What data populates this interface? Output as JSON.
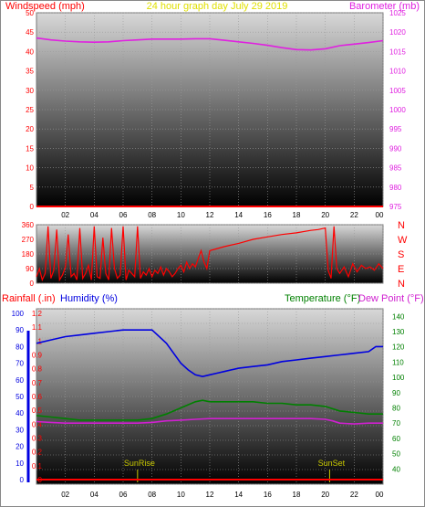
{
  "colors": {
    "wind": "#ff0000",
    "baro": "#e020e0",
    "winddir": "#ff0000",
    "rain": "#ff0000",
    "humidity": "#0000e0",
    "temperature": "#008000",
    "dewpoint": "#d020d0",
    "sun": "#c8c800",
    "title": "#e0e000"
  },
  "header": {
    "left_label": "Windspeed (mph)",
    "title": "24 hour graph day   July 29 2019",
    "right_label": "Barometer (mb)"
  },
  "chart_data": [
    {
      "id": "wind-baro",
      "type": "line",
      "x_ticks": [
        "02",
        "04",
        "06",
        "08",
        "10",
        "12",
        "14",
        "16",
        "18",
        "20",
        "22",
        "00"
      ],
      "left_axis": {
        "label": "Windspeed (mph)",
        "range": [
          0,
          50
        ],
        "ticks": [
          "0",
          "5",
          "10",
          "15",
          "20",
          "25",
          "30",
          "35",
          "40",
          "45",
          "50"
        ]
      },
      "right_axis": {
        "label": "Barometer (mb)",
        "range": [
          975,
          1025
        ],
        "ticks": [
          "975",
          "980",
          "985",
          "990",
          "995",
          "1000",
          "1005",
          "1010",
          "1015",
          "1020",
          "1025"
        ]
      },
      "series": [
        {
          "axis": "right",
          "x": [
            0,
            1,
            2,
            3,
            4,
            5,
            6,
            7,
            8,
            9,
            10,
            11,
            12,
            13,
            14,
            15,
            16,
            17,
            18,
            19,
            20,
            21,
            22,
            23,
            24
          ],
          "values": [
            1018.5,
            1018.0,
            1017.7,
            1017.5,
            1017.4,
            1017.5,
            1017.8,
            1018.0,
            1018.2,
            1018.2,
            1018.2,
            1018.3,
            1018.3,
            1017.9,
            1017.5,
            1017.1,
            1016.6,
            1016.0,
            1015.5,
            1015.4,
            1015.7,
            1016.5,
            1016.9,
            1017.3,
            1017.8
          ]
        },
        {
          "axis": "left",
          "x": [
            0,
            24
          ],
          "values": [
            0,
            0
          ]
        }
      ]
    },
    {
      "id": "winddir",
      "type": "line",
      "x_ticks": [
        "02",
        "04",
        "06",
        "08",
        "10",
        "12",
        "14",
        "16",
        "18",
        "20",
        "22",
        "00"
      ],
      "left_axis": {
        "range": [
          0,
          360
        ],
        "ticks": [
          "0",
          "90",
          "180",
          "270",
          "360"
        ]
      },
      "right_axis": {
        "ticks": [
          "N",
          "E",
          "S",
          "W",
          "N"
        ]
      },
      "series": [
        {
          "x": [
            0,
            0.2,
            0.4,
            0.6,
            0.8,
            1.0,
            1.2,
            1.4,
            1.6,
            1.8,
            2.0,
            2.2,
            2.4,
            2.6,
            2.8,
            3.0,
            3.2,
            3.4,
            3.6,
            3.8,
            4.0,
            4.2,
            4.4,
            4.6,
            4.8,
            5.0,
            5.2,
            5.4,
            5.6,
            5.8,
            6.0,
            6.2,
            6.4,
            6.6,
            6.8,
            7.0,
            7.2,
            7.4,
            7.6,
            7.8,
            8.0,
            8.2,
            8.4,
            8.6,
            8.8,
            9.0,
            9.2,
            9.4,
            9.6,
            9.8,
            10.0,
            10.2,
            10.4,
            10.6,
            10.8,
            11.0,
            11.2,
            11.4,
            11.6,
            11.8,
            12.0,
            13.0,
            14.0,
            15.0,
            16.0,
            17.0,
            18.0,
            19.0,
            19.5,
            20.0,
            20.2,
            20.4,
            20.6,
            20.8,
            21.0,
            21.3,
            21.6,
            21.9,
            22.2,
            22.5,
            22.8,
            23.1,
            23.4,
            23.7,
            24.0
          ],
          "values": [
            40,
            90,
            20,
            60,
            350,
            30,
            80,
            330,
            20,
            50,
            100,
            300,
            40,
            60,
            20,
            340,
            30,
            60,
            110,
            20,
            350,
            40,
            30,
            280,
            60,
            20,
            340,
            90,
            30,
            50,
            350,
            20,
            80,
            60,
            40,
            350,
            30,
            70,
            50,
            90,
            40,
            80,
            60,
            100,
            50,
            90,
            70,
            40,
            60,
            90,
            110,
            70,
            130,
            90,
            120,
            100,
            150,
            200,
            130,
            90,
            200,
            225,
            245,
            270,
            285,
            300,
            310,
            325,
            330,
            340,
            80,
            30,
            350,
            90,
            60,
            100,
            40,
            120,
            70,
            110,
            90,
            100,
            80,
            120,
            90
          ]
        }
      ]
    },
    {
      "id": "rain-hum-temp",
      "type": "line",
      "header_left_rain": "Rainfall (.in)",
      "header_left_hum": "Humidity (%)",
      "header_right_temp": "Temperature (°F)",
      "header_right_dew": "Dew Point (°F)",
      "x_ticks": [
        "02",
        "04",
        "06",
        "08",
        "10",
        "12",
        "14",
        "16",
        "18",
        "20",
        "22",
        "00"
      ],
      "hum_axis": {
        "range": [
          0,
          100
        ],
        "ticks": [
          "0",
          "10",
          "20",
          "30",
          "40",
          "50",
          "60",
          "70",
          "80",
          "90",
          "100"
        ]
      },
      "rain_axis": {
        "range": [
          0,
          1.2
        ],
        "ticks": [
          "0",
          "0.1",
          "0.2",
          "0.3",
          "0.4",
          "0.5",
          "0.6",
          "0.7",
          "0.8",
          "0.9",
          "1",
          "1.1",
          "1.2"
        ]
      },
      "temp_axis": {
        "range": [
          30,
          145
        ],
        "ticks": [
          "40",
          "50",
          "60",
          "70",
          "80",
          "90",
          "100",
          "110",
          "120",
          "130",
          "140"
        ]
      },
      "annotations": [
        {
          "label": "SunRise",
          "x": 7.0
        },
        {
          "label": "SunSet",
          "x": 20.3
        }
      ],
      "series": [
        {
          "name": "Humidity",
          "x": [
            0,
            1,
            2,
            3,
            4,
            5,
            6,
            7,
            8,
            9,
            10,
            10.5,
            11,
            11.5,
            12,
            12.5,
            13,
            14,
            15,
            16,
            17,
            18,
            19,
            20,
            21,
            22,
            23,
            23.5,
            24
          ],
          "values": [
            82,
            84,
            86,
            87,
            88,
            89,
            90,
            90,
            90,
            82,
            70,
            66,
            63,
            62,
            63,
            64,
            65,
            67,
            68,
            69,
            71,
            72,
            73,
            74,
            75,
            76,
            77,
            80,
            80
          ]
        },
        {
          "name": "Temperature",
          "x": [
            0,
            1,
            2,
            3,
            4,
            5,
            6,
            7,
            8,
            9,
            10,
            11,
            11.5,
            12,
            13,
            14,
            15,
            16,
            17,
            18,
            19,
            20,
            21,
            22,
            23,
            24
          ],
          "values": [
            75,
            74,
            73,
            72,
            72,
            72,
            72,
            72,
            73,
            76,
            80,
            84,
            85,
            84,
            84,
            84,
            84,
            83,
            83,
            82,
            82,
            81,
            78,
            77,
            76,
            76
          ]
        },
        {
          "name": "Dew Point",
          "x": [
            0,
            1,
            2,
            3,
            4,
            5,
            6,
            7,
            8,
            9,
            10,
            11,
            12,
            13,
            14,
            15,
            16,
            17,
            18,
            19,
            20,
            20.5,
            21,
            22,
            23,
            24
          ],
          "values": [
            71,
            70.5,
            70,
            70,
            70,
            70,
            70,
            70,
            70.5,
            71.5,
            72,
            72.5,
            73,
            73,
            73,
            73,
            73,
            73,
            73,
            73,
            72.5,
            71.5,
            70,
            69.5,
            70,
            70
          ]
        },
        {
          "name": "Rainfall",
          "x": [
            0,
            24
          ],
          "values": [
            0,
            0
          ]
        }
      ]
    }
  ]
}
